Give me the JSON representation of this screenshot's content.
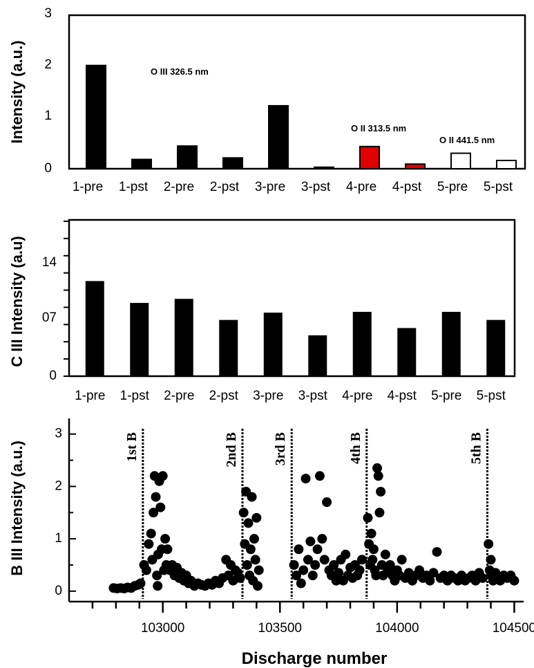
{
  "chart_data": [
    {
      "type": "bar",
      "categories": [
        "1-pre",
        "1-pst",
        "2-pre",
        "2-pst",
        "3-pre",
        "3-pst",
        "4-pre",
        "4-pst",
        "5-pre",
        "5-pst"
      ],
      "values": [
        2.0,
        0.18,
        0.44,
        0.21,
        1.22,
        0.03,
        0.43,
        0.09,
        0.3,
        0.16
      ],
      "bar_fills": [
        "#000000",
        "#000000",
        "#000000",
        "#000000",
        "#000000",
        "#000000",
        "#e00000",
        "#e00000",
        "#ffffff",
        "#ffffff"
      ],
      "ylabel": "Intensity (a.u.)",
      "ylim": [
        0,
        3
      ],
      "yticks": [
        "0",
        "1",
        "2",
        "3"
      ],
      "annotations": [
        "O III 326.5 nm",
        "O II 313.5 nm",
        "O II 441.5 nm"
      ]
    },
    {
      "type": "bar",
      "categories": [
        "1-pre",
        "1-pst",
        "2-pre",
        "2-pst",
        "3-pre",
        "3-pst",
        "4-pre",
        "4-pst",
        "5-pre",
        "5-pst"
      ],
      "values": [
        1.17,
        0.9,
        0.95,
        0.69,
        0.78,
        0.5,
        0.79,
        0.59,
        0.79,
        0.69
      ],
      "ylabel": "C III Intensity (a.u)",
      "ylim": [
        0,
        2
      ],
      "yticks": [
        "0",
        "07",
        "14"
      ]
    },
    {
      "type": "scatter",
      "xlabel": "Discharge number",
      "ylabel": "B III Intensity (a.u.)",
      "xlim": [
        102600,
        104540
      ],
      "ylim": [
        -0.2,
        3.3
      ],
      "xticks": [
        "103000",
        "103500",
        "104000",
        "104500"
      ],
      "yticks": [
        "0",
        "1",
        "2",
        "3"
      ],
      "boronizations": [
        {
          "label": "1st B",
          "x": 102915
        },
        {
          "label": "2nd B",
          "x": 103340
        },
        {
          "label": "3rd B",
          "x": 103550
        },
        {
          "label": "4th B",
          "x": 103870
        },
        {
          "label": "5th B",
          "x": 104385
        }
      ],
      "points": [
        [
          102790,
          0.06
        ],
        [
          102805,
          0.05
        ],
        [
          102820,
          0.06
        ],
        [
          102835,
          0.05
        ],
        [
          102850,
          0.07
        ],
        [
          102865,
          0.06
        ],
        [
          102880,
          0.1
        ],
        [
          102895,
          0.12
        ],
        [
          102905,
          0.15
        ],
        [
          102920,
          0.5
        ],
        [
          102930,
          0.4
        ],
        [
          102940,
          0.9
        ],
        [
          102950,
          1.1
        ],
        [
          102955,
          0.6
        ],
        [
          102960,
          1.5
        ],
        [
          102965,
          2.2
        ],
        [
          102970,
          1.8
        ],
        [
          102975,
          0.3
        ],
        [
          102978,
          0.1
        ],
        [
          102980,
          0.7
        ],
        [
          102985,
          2.1
        ],
        [
          102990,
          1.6
        ],
        [
          102995,
          0.8
        ],
        [
          103000,
          2.2
        ],
        [
          103005,
          0.4
        ],
        [
          103010,
          1.0
        ],
        [
          103015,
          0.5
        ],
        [
          103020,
          0.8
        ],
        [
          103030,
          0.4
        ],
        [
          103040,
          0.5
        ],
        [
          103050,
          0.3
        ],
        [
          103060,
          0.45
        ],
        [
          103070,
          0.25
        ],
        [
          103080,
          0.35
        ],
        [
          103090,
          0.2
        ],
        [
          103100,
          0.3
        ],
        [
          103110,
          0.15
        ],
        [
          103120,
          0.2
        ],
        [
          103135,
          0.1
        ],
        [
          103150,
          0.15
        ],
        [
          103165,
          0.12
        ],
        [
          103180,
          0.1
        ],
        [
          103195,
          0.15
        ],
        [
          103210,
          0.12
        ],
        [
          103225,
          0.2
        ],
        [
          103240,
          0.15
        ],
        [
          103255,
          0.25
        ],
        [
          103270,
          0.6
        ],
        [
          103280,
          0.3
        ],
        [
          103290,
          0.5
        ],
        [
          103300,
          0.2
        ],
        [
          103310,
          0.4
        ],
        [
          103320,
          0.35
        ],
        [
          103330,
          0.25
        ],
        [
          103345,
          1.5
        ],
        [
          103350,
          0.9
        ],
        [
          103355,
          1.9
        ],
        [
          103360,
          0.5
        ],
        [
          103365,
          1.3
        ],
        [
          103370,
          0.3
        ],
        [
          103375,
          0.8
        ],
        [
          103380,
          1.8
        ],
        [
          103385,
          0.2
        ],
        [
          103390,
          1.0
        ],
        [
          103395,
          0.6
        ],
        [
          103400,
          1.4
        ],
        [
          103405,
          0.1
        ],
        [
          103410,
          0.4
        ],
        [
          103560,
          0.5
        ],
        [
          103570,
          0.3
        ],
        [
          103580,
          0.8
        ],
        [
          103590,
          0.15
        ],
        [
          103600,
          0.4
        ],
        [
          103610,
          2.15
        ],
        [
          103620,
          0.6
        ],
        [
          103630,
          0.95
        ],
        [
          103640,
          0.3
        ],
        [
          103650,
          0.5
        ],
        [
          103660,
          0.8
        ],
        [
          103670,
          2.2
        ],
        [
          103680,
          1.0
        ],
        [
          103690,
          0.6
        ],
        [
          103700,
          1.7
        ],
        [
          103710,
          0.4
        ],
        [
          103720,
          0.3
        ],
        [
          103730,
          0.5
        ],
        [
          103740,
          0.2
        ],
        [
          103750,
          0.35
        ],
        [
          103760,
          0.6
        ],
        [
          103770,
          0.2
        ],
        [
          103780,
          0.7
        ],
        [
          103790,
          0.3
        ],
        [
          103800,
          0.45
        ],
        [
          103810,
          0.25
        ],
        [
          103820,
          0.5
        ],
        [
          103830,
          0.3
        ],
        [
          103840,
          0.4
        ],
        [
          103850,
          0.6
        ],
        [
          103875,
          1.4
        ],
        [
          103880,
          0.9
        ],
        [
          103885,
          0.5
        ],
        [
          103890,
          1.1
        ],
        [
          103895,
          0.6
        ],
        [
          103900,
          0.8
        ],
        [
          103905,
          0.4
        ],
        [
          103910,
          0.3
        ],
        [
          103915,
          2.35
        ],
        [
          103920,
          2.2
        ],
        [
          103925,
          1.5
        ],
        [
          103930,
          1.9
        ],
        [
          103935,
          0.5
        ],
        [
          103940,
          0.3
        ],
        [
          103950,
          0.7
        ],
        [
          103960,
          0.4
        ],
        [
          103970,
          0.5
        ],
        [
          103980,
          0.3
        ],
        [
          103990,
          0.2
        ],
        [
          104000,
          0.4
        ],
        [
          104010,
          0.3
        ],
        [
          104020,
          0.6
        ],
        [
          104035,
          0.25
        ],
        [
          104050,
          0.35
        ],
        [
          104065,
          0.2
        ],
        [
          104080,
          0.3
        ],
        [
          104095,
          0.4
        ],
        [
          104110,
          0.25
        ],
        [
          104125,
          0.3
        ],
        [
          104140,
          0.2
        ],
        [
          104155,
          0.35
        ],
        [
          104170,
          0.75
        ],
        [
          104185,
          0.25
        ],
        [
          104200,
          0.3
        ],
        [
          104215,
          0.2
        ],
        [
          104230,
          0.3
        ],
        [
          104245,
          0.25
        ],
        [
          104260,
          0.2
        ],
        [
          104275,
          0.3
        ],
        [
          104290,
          0.2
        ],
        [
          104305,
          0.25
        ],
        [
          104320,
          0.3
        ],
        [
          104335,
          0.2
        ],
        [
          104350,
          0.35
        ],
        [
          104365,
          0.25
        ],
        [
          104390,
          0.9
        ],
        [
          104395,
          0.4
        ],
        [
          104400,
          0.6
        ],
        [
          104405,
          0.3
        ],
        [
          104410,
          0.2
        ],
        [
          104420,
          0.35
        ],
        [
          104430,
          0.25
        ],
        [
          104440,
          0.2
        ],
        [
          104455,
          0.3
        ],
        [
          104470,
          0.25
        ],
        [
          104485,
          0.3
        ],
        [
          104500,
          0.2
        ]
      ]
    }
  ]
}
